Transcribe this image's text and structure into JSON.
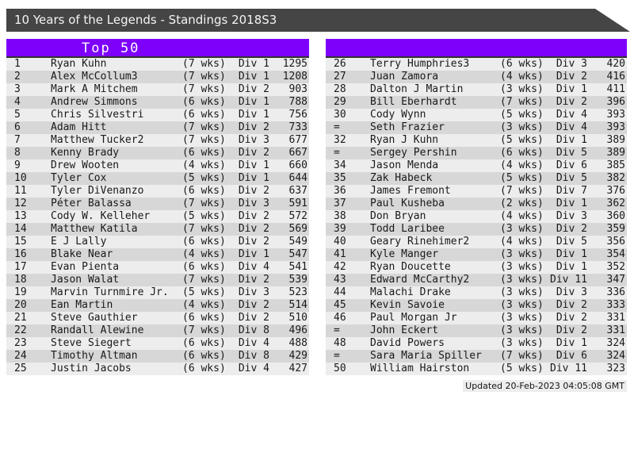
{
  "title_bar": {
    "title": "10 Years of the Legends - Standings 2018S3"
  },
  "colors": {
    "titlebar_bg": "#454545",
    "header_accent": "#7e00fb",
    "row_light": "#ededed",
    "row_dark": "#d7d7d7"
  },
  "left_table": {
    "header": "Top 50",
    "rows": [
      {
        "rank": "1",
        "name": "Ryan Kuhn",
        "weeks": "(7 wks)",
        "division": "Div 1",
        "score": "1295"
      },
      {
        "rank": "2",
        "name": "Alex McCollum3",
        "weeks": "(7 wks)",
        "division": "Div 1",
        "score": "1208"
      },
      {
        "rank": "3",
        "name": "Mark A Mitchem",
        "weeks": "(7 wks)",
        "division": "Div 2",
        "score": "903"
      },
      {
        "rank": "4",
        "name": "Andrew Simmons",
        "weeks": "(6 wks)",
        "division": "Div 1",
        "score": "788"
      },
      {
        "rank": "5",
        "name": "Chris Silvestri",
        "weeks": "(6 wks)",
        "division": "Div 1",
        "score": "756"
      },
      {
        "rank": "6",
        "name": "Adam Hitt",
        "weeks": "(7 wks)",
        "division": "Div 2",
        "score": "733"
      },
      {
        "rank": "7",
        "name": "Matthew Tucker2",
        "weeks": "(7 wks)",
        "division": "Div 3",
        "score": "677"
      },
      {
        "rank": "8",
        "name": "Kenny Brady",
        "weeks": "(6 wks)",
        "division": "Div 2",
        "score": "667"
      },
      {
        "rank": "9",
        "name": "Drew Wooten",
        "weeks": "(4 wks)",
        "division": "Div 1",
        "score": "660"
      },
      {
        "rank": "10",
        "name": "Tyler Cox",
        "weeks": "(5 wks)",
        "division": "Div 1",
        "score": "644"
      },
      {
        "rank": "11",
        "name": "Tyler DiVenanzo",
        "weeks": "(6 wks)",
        "division": "Div 2",
        "score": "637"
      },
      {
        "rank": "12",
        "name": "Péter Balassa",
        "weeks": "(7 wks)",
        "division": "Div 3",
        "score": "591"
      },
      {
        "rank": "13",
        "name": "Cody W. Kelleher",
        "weeks": "(5 wks)",
        "division": "Div 2",
        "score": "572"
      },
      {
        "rank": "14",
        "name": "Matthew Katila",
        "weeks": "(7 wks)",
        "division": "Div 2",
        "score": "569"
      },
      {
        "rank": "15",
        "name": "E J Lally",
        "weeks": "(6 wks)",
        "division": "Div 2",
        "score": "549"
      },
      {
        "rank": "16",
        "name": "Blake Near",
        "weeks": "(4 wks)",
        "division": "Div 1",
        "score": "547"
      },
      {
        "rank": "17",
        "name": "Evan Pienta",
        "weeks": "(6 wks)",
        "division": "Div 4",
        "score": "541"
      },
      {
        "rank": "18",
        "name": "Jason Walat",
        "weeks": "(7 wks)",
        "division": "Div 2",
        "score": "539"
      },
      {
        "rank": "19",
        "name": "Marvin Turnmire Jr.",
        "weeks": "(5 wks)",
        "division": "Div 3",
        "score": "523"
      },
      {
        "rank": "20",
        "name": "Ean Martin",
        "weeks": "(4 wks)",
        "division": "Div 2",
        "score": "514"
      },
      {
        "rank": "21",
        "name": "Steve Gauthier",
        "weeks": "(6 wks)",
        "division": "Div 2",
        "score": "510"
      },
      {
        "rank": "22",
        "name": "Randall Alewine",
        "weeks": "(7 wks)",
        "division": "Div 8",
        "score": "496"
      },
      {
        "rank": "23",
        "name": "Steve Siegert",
        "weeks": "(6 wks)",
        "division": "Div 4",
        "score": "488"
      },
      {
        "rank": "24",
        "name": "Timothy Altman",
        "weeks": "(6 wks)",
        "division": "Div 8",
        "score": "429"
      },
      {
        "rank": "25",
        "name": "Justin Jacobs",
        "weeks": "(6 wks)",
        "division": "Div 4",
        "score": "427"
      }
    ]
  },
  "right_table": {
    "header": "",
    "rows": [
      {
        "rank": "26",
        "name": "Terry Humphries3",
        "weeks": "(6 wks)",
        "division": "Div 3",
        "score": "420"
      },
      {
        "rank": "27",
        "name": "Juan Zamora",
        "weeks": "(4 wks)",
        "division": "Div 2",
        "score": "416"
      },
      {
        "rank": "28",
        "name": "Dalton J Martin",
        "weeks": "(3 wks)",
        "division": "Div 1",
        "score": "411"
      },
      {
        "rank": "29",
        "name": "Bill Eberhardt",
        "weeks": "(7 wks)",
        "division": "Div 2",
        "score": "396"
      },
      {
        "rank": "30",
        "name": "Cody Wynn",
        "weeks": "(5 wks)",
        "division": "Div 4",
        "score": "393"
      },
      {
        "rank": "=",
        "name": "Seth Frazier",
        "weeks": "(3 wks)",
        "division": "Div 4",
        "score": "393"
      },
      {
        "rank": "32",
        "name": "Ryan J Kuhn",
        "weeks": "(5 wks)",
        "division": "Div 1",
        "score": "389"
      },
      {
        "rank": "=",
        "name": "Sergey Pershin",
        "weeks": "(6 wks)",
        "division": "Div 5",
        "score": "389"
      },
      {
        "rank": "34",
        "name": "Jason Menda",
        "weeks": "(4 wks)",
        "division": "Div 6",
        "score": "385"
      },
      {
        "rank": "35",
        "name": "Zak Habeck",
        "weeks": "(5 wks)",
        "division": "Div 5",
        "score": "382"
      },
      {
        "rank": "36",
        "name": "James Fremont",
        "weeks": "(7 wks)",
        "division": "Div 7",
        "score": "376"
      },
      {
        "rank": "37",
        "name": "Paul Kusheba",
        "weeks": "(2 wks)",
        "division": "Div 1",
        "score": "362"
      },
      {
        "rank": "38",
        "name": "Don Bryan",
        "weeks": "(4 wks)",
        "division": "Div 3",
        "score": "360"
      },
      {
        "rank": "39",
        "name": "Todd Laribee",
        "weeks": "(3 wks)",
        "division": "Div 2",
        "score": "359"
      },
      {
        "rank": "40",
        "name": "Geary Rinehimer2",
        "weeks": "(4 wks)",
        "division": "Div 5",
        "score": "356"
      },
      {
        "rank": "41",
        "name": "Kyle Manger",
        "weeks": "(3 wks)",
        "division": "Div 1",
        "score": "354"
      },
      {
        "rank": "42",
        "name": "Ryan Doucette",
        "weeks": "(3 wks)",
        "division": "Div 1",
        "score": "352"
      },
      {
        "rank": "43",
        "name": "Edward McCarthy2",
        "weeks": "(3 wks)",
        "division": "Div 11",
        "score": "347"
      },
      {
        "rank": "44",
        "name": "Malachi Drake",
        "weeks": "(3 wks)",
        "division": "Div 3",
        "score": "336"
      },
      {
        "rank": "45",
        "name": "Kevin Savoie",
        "weeks": "(3 wks)",
        "division": "Div 2",
        "score": "333"
      },
      {
        "rank": "46",
        "name": "Paul Morgan Jr",
        "weeks": "(3 wks)",
        "division": "Div 2",
        "score": "331"
      },
      {
        "rank": "=",
        "name": "John Eckert",
        "weeks": "(3 wks)",
        "division": "Div 2",
        "score": "331"
      },
      {
        "rank": "48",
        "name": "David Powers",
        "weeks": "(3 wks)",
        "division": "Div 1",
        "score": "324"
      },
      {
        "rank": "=",
        "name": "Sara Maria Spiller",
        "weeks": "(7 wks)",
        "division": "Div 6",
        "score": "324"
      },
      {
        "rank": "50",
        "name": "William Hairston",
        "weeks": "(5 wks)",
        "division": "Div 11",
        "score": "323"
      }
    ]
  },
  "footer": {
    "updated": "Updated 20-Feb-2023 04:05:08 GMT"
  }
}
